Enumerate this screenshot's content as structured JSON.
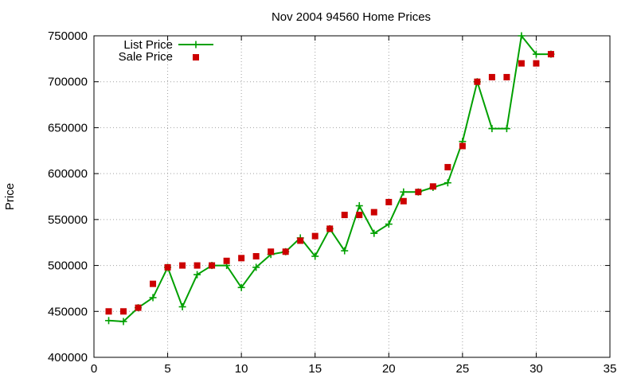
{
  "chart_data": {
    "type": "line",
    "title": "Nov 2004 94560 Home Prices",
    "xlabel": "",
    "ylabel": "Price",
    "xlim": [
      0,
      35
    ],
    "ylim": [
      400000,
      750000
    ],
    "xticks": [
      0,
      5,
      10,
      15,
      20,
      25,
      30,
      35
    ],
    "yticks": [
      400000,
      450000,
      500000,
      550000,
      600000,
      650000,
      700000,
      750000
    ],
    "grid": true,
    "legend_position": "top-left",
    "series": [
      {
        "name": "List Price",
        "style": "line-with-plus-markers",
        "color": "#00a000",
        "x": [
          1,
          2,
          3,
          4,
          5,
          6,
          7,
          8,
          9,
          10,
          11,
          12,
          13,
          14,
          15,
          16,
          17,
          18,
          19,
          20,
          21,
          22,
          23,
          24,
          25,
          26,
          27,
          28,
          29,
          30,
          31
        ],
        "y": [
          440000,
          439000,
          454000,
          465000,
          498000,
          455000,
          490000,
          500000,
          500000,
          476000,
          498000,
          512000,
          515000,
          530000,
          510000,
          540000,
          516000,
          565000,
          535000,
          545000,
          580000,
          580000,
          585000,
          590000,
          635000,
          700000,
          649000,
          649000,
          750000,
          730000,
          730000
        ]
      },
      {
        "name": "Sale Price",
        "style": "square-markers",
        "color": "#cc0000",
        "x": [
          1,
          2,
          3,
          4,
          5,
          6,
          7,
          8,
          9,
          10,
          11,
          12,
          13,
          14,
          15,
          16,
          17,
          18,
          19,
          20,
          21,
          22,
          23,
          24,
          25,
          26,
          27,
          28,
          29,
          30,
          31
        ],
        "y": [
          450000,
          450000,
          454000,
          480000,
          498000,
          500000,
          500000,
          500000,
          505000,
          508000,
          510000,
          515000,
          515000,
          527000,
          532000,
          540000,
          555000,
          555000,
          558000,
          569000,
          570000,
          580000,
          586000,
          607000,
          630000,
          700000,
          705000,
          705000,
          720000,
          720000,
          730000
        ]
      }
    ]
  }
}
